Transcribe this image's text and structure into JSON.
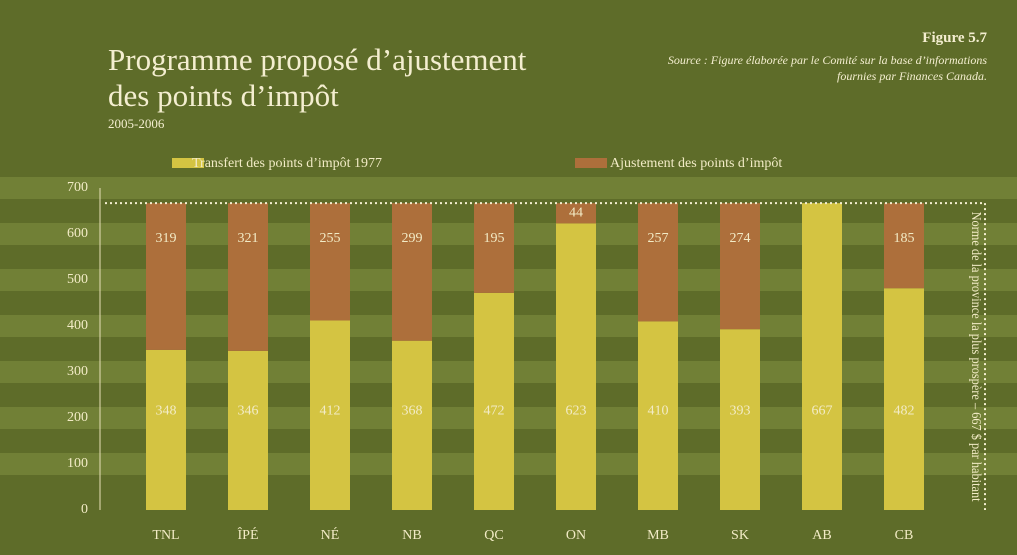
{
  "chart_data": {
    "type": "stacked_bar",
    "title": "Programme proposé d’ajustement des points d’impôt",
    "subtitle": "2005-2006",
    "figure_label": "Figure 5.7",
    "source": "Source : Figure élaborée par le Comité sur la base d’informations fournies par Finances Canada.",
    "categories": [
      "TNL",
      "ÎPÉ",
      "NÉ",
      "NB",
      "QC",
      "ON",
      "MB",
      "SK",
      "AB",
      "CB"
    ],
    "series": [
      {
        "name": "Transfert des points d’impôt 1977",
        "color": "#d4c442",
        "values": [
          348,
          346,
          412,
          368,
          472,
          623,
          410,
          393,
          667,
          482
        ]
      },
      {
        "name": "Ajustement des points d’impôt",
        "color": "#ad6f3b",
        "values": [
          319,
          321,
          255,
          299,
          195,
          44,
          257,
          274,
          null,
          185
        ]
      }
    ],
    "ylim": [
      0,
      700
    ],
    "yticks": [
      0,
      100,
      200,
      300,
      400,
      500,
      600,
      700
    ],
    "reference_value": 667,
    "annotation": "Norme de la province la plus prospère – 667 $ par habitant"
  }
}
